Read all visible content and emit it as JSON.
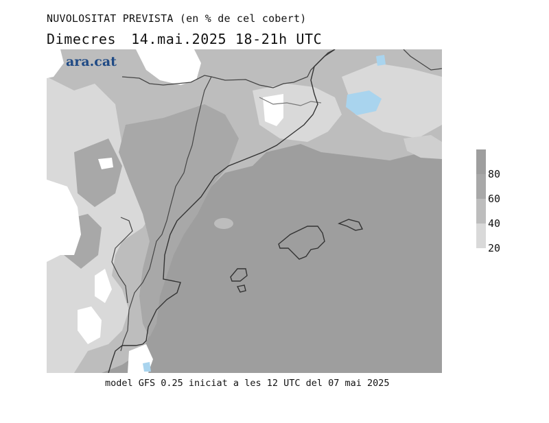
{
  "header": {
    "title": "NUVOLOSITAT PREVISTA (en % de cel cobert)",
    "day": "Dimecres",
    "date": "14.mai.2025",
    "time_range": "18-21h UTC"
  },
  "logo": {
    "text": "ara.cat",
    "color": "#1f4a85"
  },
  "legend": {
    "levels": [
      "20",
      "40",
      "60",
      "80"
    ],
    "colors": {
      "c0_20": "#ffffff",
      "c20_40": "#d9d9d9",
      "c40_60": "#bdbdbd",
      "c60_80": "#a8a8a8",
      "c80_100": "#9e9e9e",
      "water": "#a9d4ee"
    }
  },
  "footer": {
    "text": "model GFS 0.25 iniciat a les 12 UTC del 07 mai 2025"
  }
}
